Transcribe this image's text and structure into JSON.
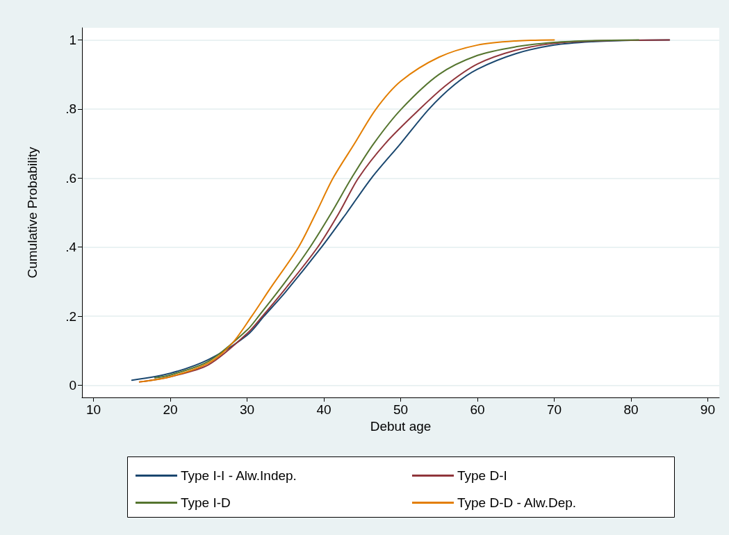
{
  "chart_data": {
    "type": "line",
    "xlabel": "Debut age",
    "ylabel": "Cumulative Probability",
    "xlim": [
      8.5,
      91.5
    ],
    "xticks": [
      10,
      20,
      30,
      40,
      50,
      60,
      70,
      80,
      90
    ],
    "ylim": [
      -0.035,
      1.035
    ],
    "yticks": [
      0,
      {
        "value": 0.2,
        "label": ".2"
      },
      {
        "value": 0.4,
        "label": ".4"
      },
      {
        "value": 0.6,
        "label": ".6"
      },
      {
        "value": 0.8,
        "label": ".8"
      },
      1
    ],
    "grid": "y",
    "legend": "bottom",
    "marker": "none",
    "line_style": "solid",
    "series": [
      {
        "name": "Type I-I - Alw.Indep.",
        "color": "#1a476f",
        "x": [
          15,
          20,
          25,
          30,
          32.2,
          35,
          39.7,
          43,
          46.2,
          50,
          53.7,
          57,
          60,
          65,
          70,
          75,
          80,
          85
        ],
        "values": [
          0.015,
          0.035,
          0.075,
          0.145,
          0.2,
          0.27,
          0.4,
          0.5,
          0.6,
          0.7,
          0.8,
          0.87,
          0.915,
          0.96,
          0.985,
          0.995,
          0.999,
          1
        ]
      },
      {
        "name": "Type D-I",
        "color": "#90353b",
        "x": [
          16,
          20,
          25,
          30,
          32,
          35,
          39.2,
          42,
          44.5,
          48,
          52.5,
          56,
          60,
          65,
          70,
          75,
          80,
          85
        ],
        "values": [
          0.01,
          0.025,
          0.06,
          0.15,
          0.2,
          0.28,
          0.4,
          0.5,
          0.6,
          0.7,
          0.8,
          0.87,
          0.93,
          0.97,
          0.99,
          0.997,
          0.999,
          1
        ]
      },
      {
        "name": "Type I-D",
        "color": "#55752f",
        "x": [
          18,
          20,
          25,
          30,
          31.5,
          35,
          38.2,
          41,
          43.6,
          46.5,
          50.1,
          55,
          60,
          65,
          70,
          75,
          81
        ],
        "values": [
          0.022,
          0.03,
          0.07,
          0.16,
          0.2,
          0.3,
          0.4,
          0.5,
          0.6,
          0.7,
          0.8,
          0.9,
          0.955,
          0.98,
          0.993,
          0.998,
          1
        ]
      },
      {
        "name": "Type D-D - Alw.Dep.",
        "color": "#e37e00",
        "x": [
          16,
          20,
          25,
          28,
          30.6,
          33,
          36.7,
          39,
          41.2,
          44,
          46.8,
          50,
          55,
          60,
          65,
          70
        ],
        "values": [
          0.01,
          0.025,
          0.065,
          0.12,
          0.2,
          0.28,
          0.4,
          0.5,
          0.6,
          0.7,
          0.8,
          0.88,
          0.95,
          0.985,
          0.997,
          1
        ]
      }
    ]
  }
}
